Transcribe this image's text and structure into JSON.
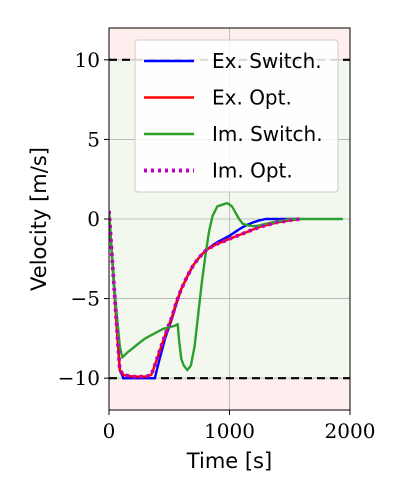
{
  "chart_data": {
    "type": "line",
    "xlabel": "Time [s]",
    "ylabel": "Velocity [m/s]",
    "xlim": [
      0,
      2000
    ],
    "ylim": [
      -12,
      12
    ],
    "x_ticks": [
      0,
      1000,
      2000
    ],
    "y_ticks": [
      -10,
      -5,
      0,
      5,
      10
    ],
    "x_tick_labels": [
      "0",
      "1000",
      "2000"
    ],
    "y_tick_labels": [
      "−10",
      "−5",
      "0",
      "5",
      "10"
    ],
    "grid": true,
    "legend_position": "top-right",
    "bounds": {
      "upper": 10,
      "lower": -10
    },
    "colors": {
      "feasible": "#f3f8ee",
      "infeasible": "#ffeeee",
      "bound_line": "#000000"
    },
    "series": [
      {
        "name": "Ex. Switch.",
        "color": "#0000ff",
        "dash": "solid",
        "x": [
          0,
          40,
          90,
          120,
          200,
          300,
          380,
          420,
          470,
          520,
          560,
          600,
          650,
          700,
          750,
          800,
          850,
          900,
          950,
          1000,
          1050,
          1100,
          1150,
          1200,
          1250,
          1300,
          1350,
          1400,
          1450,
          1500,
          1550
        ],
        "y": [
          0.5,
          -4.0,
          -9.5,
          -10,
          -10,
          -10,
          -10,
          -8.8,
          -7.4,
          -6.3,
          -5.3,
          -4.4,
          -3.6,
          -2.9,
          -2.4,
          -2.0,
          -1.7,
          -1.45,
          -1.25,
          -1.05,
          -0.8,
          -0.55,
          -0.35,
          -0.2,
          -0.08,
          0,
          0,
          0,
          0,
          0,
          0
        ]
      },
      {
        "name": "Ex. Opt.",
        "color": "#ff0000",
        "dash": "solid",
        "x": [
          0,
          40,
          90,
          120,
          200,
          300,
          350,
          380,
          420,
          470,
          520,
          560,
          600,
          650,
          700,
          750,
          800,
          850,
          900,
          950,
          1000,
          1050,
          1100,
          1150,
          1200,
          1250,
          1300,
          1350,
          1400,
          1450,
          1500,
          1550,
          1590
        ],
        "y": [
          0.5,
          -4.0,
          -9.5,
          -9.8,
          -9.9,
          -9.9,
          -9.8,
          -9.2,
          -8.3,
          -7.2,
          -6.2,
          -5.2,
          -4.4,
          -3.6,
          -2.9,
          -2.4,
          -2.0,
          -1.75,
          -1.55,
          -1.4,
          -1.25,
          -1.1,
          -0.95,
          -0.8,
          -0.65,
          -0.5,
          -0.4,
          -0.3,
          -0.2,
          -0.15,
          -0.08,
          -0.03,
          0
        ]
      },
      {
        "name": "Im. Switch.",
        "color": "#2ca02c",
        "dash": "solid",
        "x": [
          0,
          40,
          90,
          110,
          150,
          200,
          250,
          300,
          350,
          400,
          450,
          500,
          550,
          570,
          580,
          600,
          620,
          650,
          680,
          710,
          740,
          770,
          800,
          830,
          860,
          900,
          940,
          980,
          1020,
          1050,
          1080,
          1110,
          1150,
          1200,
          1250,
          1300,
          1400,
          1500,
          1600,
          1700,
          1800,
          1900,
          1940
        ],
        "y": [
          0.5,
          -4.0,
          -8.0,
          -8.7,
          -8.4,
          -8.1,
          -7.8,
          -7.5,
          -7.3,
          -7.1,
          -6.9,
          -6.8,
          -6.7,
          -6.6,
          -7.5,
          -8.8,
          -9.2,
          -9.5,
          -9.2,
          -8.0,
          -6.0,
          -4.0,
          -2.3,
          -0.8,
          0.2,
          0.8,
          0.9,
          1.0,
          0.8,
          0.4,
          0.0,
          -0.3,
          -0.4,
          -0.45,
          -0.4,
          -0.3,
          -0.15,
          0.0,
          0.0,
          0.0,
          0.0,
          0.0,
          0.0
        ]
      },
      {
        "name": "Im. Opt.",
        "color": "#c000c0",
        "dash": "dotted",
        "x": [
          0,
          40,
          90,
          120,
          200,
          300,
          350,
          380,
          420,
          470,
          520,
          560,
          600,
          650,
          700,
          750,
          800,
          850,
          900,
          950,
          1000,
          1050,
          1100,
          1150,
          1200,
          1250,
          1300,
          1350,
          1400,
          1450,
          1500,
          1550,
          1590
        ],
        "y": [
          0.5,
          -4.0,
          -9.5,
          -9.8,
          -9.9,
          -9.9,
          -9.8,
          -9.2,
          -8.3,
          -7.2,
          -6.2,
          -5.2,
          -4.4,
          -3.6,
          -2.9,
          -2.4,
          -2.0,
          -1.75,
          -1.55,
          -1.4,
          -1.25,
          -1.1,
          -0.95,
          -0.8,
          -0.65,
          -0.5,
          -0.4,
          -0.3,
          -0.2,
          -0.15,
          -0.08,
          -0.03,
          0
        ]
      }
    ]
  }
}
